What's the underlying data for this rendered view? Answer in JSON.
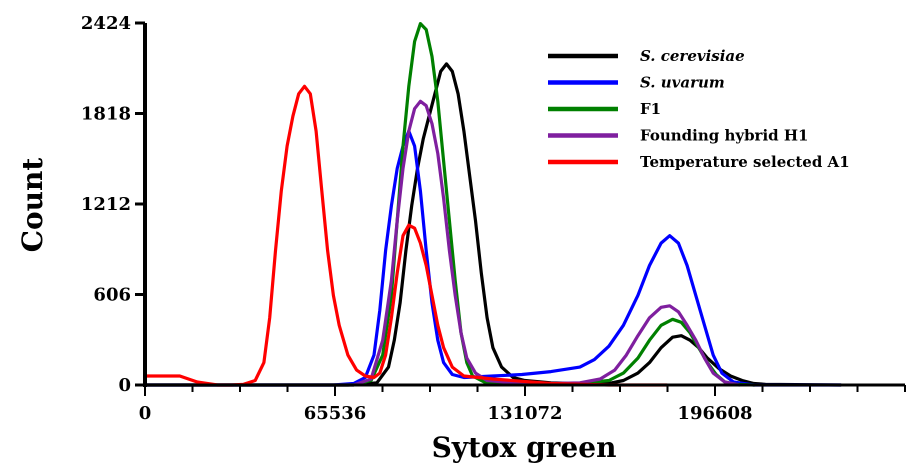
{
  "chart_data": {
    "type": "line",
    "xlabel": "Sytox green",
    "ylabel": "Count",
    "xlim": [
      0,
      262144
    ],
    "ylim": [
      0,
      2424
    ],
    "x_ticks": [
      0,
      65536,
      131072,
      196608
    ],
    "x_tick_labels": [
      "0",
      "65536",
      "131072",
      "196608"
    ],
    "y_ticks": [
      0,
      606,
      1212,
      1818,
      2424
    ],
    "y_tick_labels": [
      "0",
      "606",
      "1212",
      "1818",
      "2424"
    ],
    "grid": false,
    "legend_position": "top-right",
    "series": [
      {
        "name": "S. cerevisiae",
        "color": "#000000",
        "italic": true,
        "points": [
          [
            0,
            0
          ],
          [
            60000,
            0
          ],
          [
            70000,
            0
          ],
          [
            74000,
            5
          ],
          [
            80000,
            15
          ],
          [
            84000,
            120
          ],
          [
            86000,
            300
          ],
          [
            88000,
            550
          ],
          [
            90000,
            900
          ],
          [
            92000,
            1200
          ],
          [
            94000,
            1450
          ],
          [
            96000,
            1650
          ],
          [
            98000,
            1800
          ],
          [
            100000,
            1950
          ],
          [
            102000,
            2100
          ],
          [
            104000,
            2150
          ],
          [
            106000,
            2100
          ],
          [
            108000,
            1950
          ],
          [
            110000,
            1700
          ],
          [
            112000,
            1400
          ],
          [
            114000,
            1100
          ],
          [
            116000,
            750
          ],
          [
            118000,
            450
          ],
          [
            120000,
            250
          ],
          [
            123000,
            120
          ],
          [
            127000,
            50
          ],
          [
            131000,
            30
          ],
          [
            140000,
            15
          ],
          [
            150000,
            10
          ],
          [
            160000,
            10
          ],
          [
            165000,
            30
          ],
          [
            170000,
            80
          ],
          [
            174000,
            150
          ],
          [
            178000,
            250
          ],
          [
            182000,
            320
          ],
          [
            185000,
            330
          ],
          [
            188000,
            300
          ],
          [
            191000,
            250
          ],
          [
            194000,
            180
          ],
          [
            198000,
            110
          ],
          [
            202000,
            60
          ],
          [
            206000,
            30
          ],
          [
            210000,
            10
          ],
          [
            214000,
            5
          ],
          [
            240000,
            0
          ]
        ]
      },
      {
        "name": "S. uvarum",
        "color": "#0000ff",
        "italic": true,
        "points": [
          [
            0,
            0
          ],
          [
            30000,
            0
          ],
          [
            55000,
            0
          ],
          [
            65000,
            0
          ],
          [
            72000,
            10
          ],
          [
            76000,
            50
          ],
          [
            79000,
            200
          ],
          [
            81000,
            500
          ],
          [
            83000,
            900
          ],
          [
            85000,
            1200
          ],
          [
            87000,
            1450
          ],
          [
            89000,
            1600
          ],
          [
            91000,
            1700
          ],
          [
            93000,
            1600
          ],
          [
            95000,
            1300
          ],
          [
            97000,
            900
          ],
          [
            99000,
            550
          ],
          [
            101000,
            300
          ],
          [
            103000,
            150
          ],
          [
            106000,
            70
          ],
          [
            110000,
            50
          ],
          [
            120000,
            60
          ],
          [
            130000,
            70
          ],
          [
            140000,
            90
          ],
          [
            150000,
            120
          ],
          [
            155000,
            170
          ],
          [
            160000,
            260
          ],
          [
            165000,
            400
          ],
          [
            170000,
            600
          ],
          [
            174000,
            800
          ],
          [
            178000,
            950
          ],
          [
            181000,
            1000
          ],
          [
            184000,
            950
          ],
          [
            187000,
            800
          ],
          [
            190000,
            600
          ],
          [
            193000,
            400
          ],
          [
            196000,
            200
          ],
          [
            199000,
            80
          ],
          [
            203000,
            20
          ],
          [
            210000,
            0
          ],
          [
            240000,
            0
          ]
        ]
      },
      {
        "name": "F1",
        "color": "#008000",
        "italic": false,
        "points": [
          [
            0,
            0
          ],
          [
            60000,
            0
          ],
          [
            72000,
            0
          ],
          [
            78000,
            30
          ],
          [
            82000,
            200
          ],
          [
            85000,
            600
          ],
          [
            87000,
            1100
          ],
          [
            89000,
            1600
          ],
          [
            91000,
            2000
          ],
          [
            93000,
            2300
          ],
          [
            95000,
            2420
          ],
          [
            97000,
            2380
          ],
          [
            99000,
            2200
          ],
          [
            101000,
            1900
          ],
          [
            103000,
            1500
          ],
          [
            105000,
            1100
          ],
          [
            107000,
            700
          ],
          [
            109000,
            350
          ],
          [
            111000,
            150
          ],
          [
            113000,
            60
          ],
          [
            117000,
            20
          ],
          [
            130000,
            5
          ],
          [
            140000,
            5
          ],
          [
            150000,
            10
          ],
          [
            160000,
            30
          ],
          [
            165000,
            80
          ],
          [
            170000,
            180
          ],
          [
            174000,
            300
          ],
          [
            178000,
            400
          ],
          [
            182000,
            440
          ],
          [
            185000,
            420
          ],
          [
            188000,
            350
          ],
          [
            191000,
            250
          ],
          [
            194000,
            150
          ],
          [
            197000,
            70
          ],
          [
            200000,
            20
          ],
          [
            204000,
            5
          ],
          [
            210000,
            0
          ]
        ]
      },
      {
        "name": "Founding hybrid H1",
        "color": "#7f1f9f",
        "italic": false,
        "points": [
          [
            0,
            0
          ],
          [
            60000,
            0
          ],
          [
            72000,
            0
          ],
          [
            78000,
            40
          ],
          [
            82000,
            300
          ],
          [
            85000,
            700
          ],
          [
            87000,
            1100
          ],
          [
            89000,
            1450
          ],
          [
            91000,
            1700
          ],
          [
            93000,
            1850
          ],
          [
            95000,
            1900
          ],
          [
            97000,
            1870
          ],
          [
            99000,
            1750
          ],
          [
            101000,
            1550
          ],
          [
            103000,
            1250
          ],
          [
            105000,
            900
          ],
          [
            107000,
            600
          ],
          [
            109000,
            350
          ],
          [
            111000,
            180
          ],
          [
            114000,
            80
          ],
          [
            118000,
            30
          ],
          [
            130000,
            10
          ],
          [
            140000,
            10
          ],
          [
            150000,
            15
          ],
          [
            157000,
            40
          ],
          [
            162000,
            100
          ],
          [
            166000,
            200
          ],
          [
            170000,
            330
          ],
          [
            174000,
            450
          ],
          [
            178000,
            520
          ],
          [
            181000,
            530
          ],
          [
            184000,
            490
          ],
          [
            187000,
            400
          ],
          [
            190000,
            300
          ],
          [
            193000,
            180
          ],
          [
            196000,
            80
          ],
          [
            200000,
            20
          ],
          [
            205000,
            0
          ]
        ]
      },
      {
        "name": "Temperature selected A1",
        "color": "#ff0000",
        "italic": false,
        "points": [
          [
            0,
            60
          ],
          [
            5000,
            60
          ],
          [
            12000,
            60
          ],
          [
            18000,
            20
          ],
          [
            25000,
            0
          ],
          [
            30000,
            0
          ],
          [
            34000,
            5
          ],
          [
            38000,
            30
          ],
          [
            41000,
            150
          ],
          [
            43000,
            450
          ],
          [
            45000,
            900
          ],
          [
            47000,
            1300
          ],
          [
            49000,
            1600
          ],
          [
            51000,
            1800
          ],
          [
            53000,
            1950
          ],
          [
            55000,
            2000
          ],
          [
            57000,
            1950
          ],
          [
            59000,
            1700
          ],
          [
            61000,
            1300
          ],
          [
            63000,
            900
          ],
          [
            65000,
            600
          ],
          [
            67000,
            400
          ],
          [
            70000,
            200
          ],
          [
            73000,
            100
          ],
          [
            76000,
            60
          ],
          [
            79000,
            50
          ],
          [
            81000,
            80
          ],
          [
            83000,
            200
          ],
          [
            85000,
            450
          ],
          [
            87000,
            750
          ],
          [
            89000,
            1000
          ],
          [
            91000,
            1070
          ],
          [
            93000,
            1050
          ],
          [
            95000,
            950
          ],
          [
            97000,
            800
          ],
          [
            99000,
            600
          ],
          [
            101000,
            400
          ],
          [
            103000,
            250
          ],
          [
            106000,
            120
          ],
          [
            110000,
            60
          ],
          [
            120000,
            40
          ],
          [
            140000,
            10
          ],
          [
            160000,
            0
          ],
          [
            180000,
            0
          ]
        ]
      }
    ]
  }
}
